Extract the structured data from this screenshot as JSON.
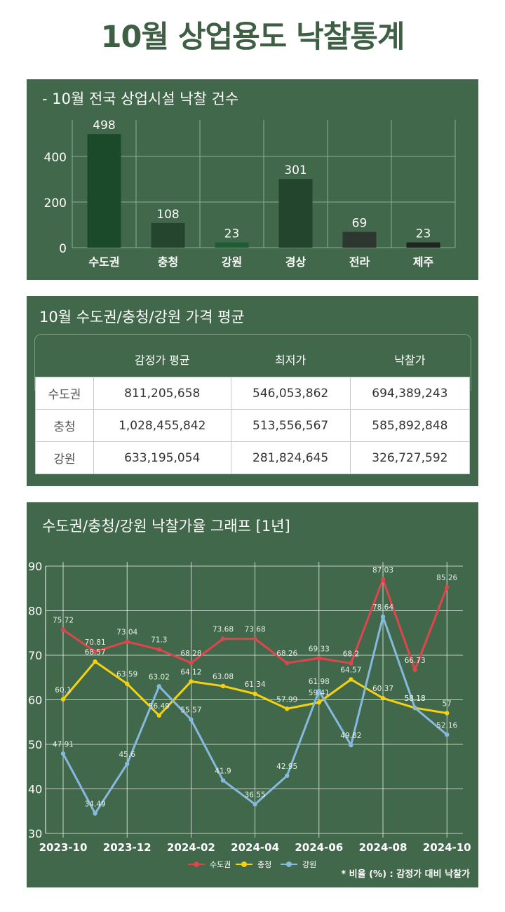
{
  "page_title": "10월 상업용도 낙찰통계",
  "bar_panel": {
    "title": "- 10월 전국 상업시설 낙찰 건수"
  },
  "table_panel": {
    "title": "10월 수도권/충청/강원 가격 평균",
    "columns": [
      "",
      "감정가 평균",
      "최저가",
      "낙찰가"
    ],
    "rows": [
      [
        "수도권",
        "811,205,658",
        "546,053,862",
        "694,389,243"
      ],
      [
        "충청",
        "1,028,455,842",
        "513,556,567",
        "585,892,848"
      ],
      [
        "강원",
        "633,195,054",
        "281,824,645",
        "326,727,592"
      ]
    ]
  },
  "line_panel": {
    "title": "수도권/충청/강원 낙찰가율 그래프 [1년]",
    "footnote": "* 비율 (%) : 감정가 대비 낙찰가"
  },
  "chart_data": [
    {
      "type": "bar",
      "categories": [
        "수도권",
        "충청",
        "강원",
        "경상",
        "전라",
        "제주"
      ],
      "values": [
        498,
        108,
        23,
        301,
        69,
        23
      ],
      "bar_colors": [
        "#1b4a2a",
        "#26452f",
        "#1f5c33",
        "#23452e",
        "#2e3630",
        "#1e2420"
      ],
      "yticks": [
        0,
        200,
        400
      ],
      "ylim": [
        0,
        560
      ],
      "grid": true
    },
    {
      "type": "line",
      "x": [
        "2023-10",
        "2023-11",
        "2023-12",
        "2024-01",
        "2024-02",
        "2024-03",
        "2024-04",
        "2024-05",
        "2024-06",
        "2024-07",
        "2024-08",
        "2024-09",
        "2024-10"
      ],
      "xtick_labels": [
        "2023-10",
        "",
        "2023-12",
        "",
        "2024-02",
        "",
        "2024-04",
        "",
        "2024-06",
        "",
        "2024-08",
        "",
        "2024-10"
      ],
      "ylim": [
        30,
        90
      ],
      "yticks": [
        30,
        40,
        50,
        60,
        70,
        80,
        90
      ],
      "grid": true,
      "legend_position": "bottom-center",
      "series": [
        {
          "name": "수도권",
          "color": "#e0444c",
          "values": [
            75.72,
            70.81,
            73.04,
            71.3,
            68.28,
            73.68,
            73.68,
            68.26,
            69.33,
            68.2,
            87.03,
            66.73,
            85.26
          ]
        },
        {
          "name": "충청",
          "color": "#f5d210",
          "values": [
            60.1,
            68.57,
            63.59,
            56.49,
            64.12,
            63.08,
            61.34,
            57.99,
            59.41,
            64.57,
            60.37,
            58.18,
            57
          ]
        },
        {
          "name": "강원",
          "color": "#86b9de",
          "values": [
            47.91,
            34.49,
            45.6,
            63.02,
            55.57,
            41.9,
            36.55,
            42.95,
            61.98,
            49.82,
            78.64,
            58.18,
            52.16
          ]
        }
      ]
    }
  ]
}
